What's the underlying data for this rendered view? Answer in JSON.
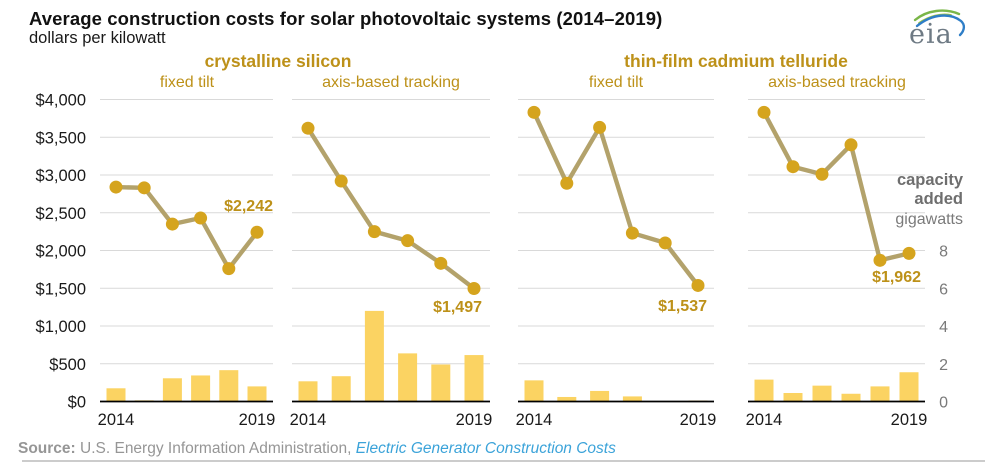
{
  "title": "Average construction costs for solar photovoltaic systems (2014–2019)",
  "subtitle": "dollars per kilowatt",
  "logo": {
    "text": "eia"
  },
  "group_headers": [
    {
      "label": "crystalline silicon"
    },
    {
      "label": "thin-film cadmium telluride"
    }
  ],
  "axes": {
    "left_ticks": [
      "$4,000",
      "$3,500",
      "$3,000",
      "$2,500",
      "$2,000",
      "$1,500",
      "$1,000",
      "$500",
      "$0"
    ],
    "right_ticks": [
      "8",
      "6",
      "4",
      "2",
      "0"
    ],
    "right_axis_label_lines": [
      "capacity",
      "added"
    ],
    "right_axis_unit": "gigawatts"
  },
  "source": {
    "prefix": "Source:",
    "text": " U.S. Energy Information Administration, ",
    "link": "Electric Generator Construction Costs"
  },
  "colors": {
    "bar": "#fbd362",
    "line": "#b3a26b",
    "marker": "#d5a41e",
    "gold_text": "#bd9119",
    "grid": "#d9d9d9",
    "axis": "#000000",
    "tick_text": "#1a1a1a",
    "gray_text": "#7a7a7a",
    "link": "#3ba3d9"
  },
  "chart_data": [
    {
      "type": "line+bar",
      "group": "crystalline silicon",
      "title": "fixed tilt",
      "x": [
        2014,
        2015,
        2016,
        2017,
        2018,
        2019
      ],
      "x_tick_labels": [
        "2014",
        "2019"
      ],
      "series": [
        {
          "name": "average construction cost (dollars per kilowatt)",
          "type": "line",
          "values": [
            2840,
            2830,
            2350,
            2430,
            1760,
            2242
          ]
        },
        {
          "name": "capacity added (gigawatts)",
          "type": "bar",
          "values": [
            0.7,
            0.06,
            1.23,
            1.38,
            1.66,
            0.8
          ]
        }
      ],
      "annotation": {
        "text": "$2,242",
        "year": 2019,
        "value": 2242
      },
      "ylim_left_dollars": [
        0,
        4000
      ],
      "ylim_right_gw": [
        0,
        8
      ],
      "axis_note": "right axis 0–8 GW spans $0–$2,000 of left axis"
    },
    {
      "type": "line+bar",
      "group": "crystalline silicon",
      "title": "axis-based tracking",
      "x": [
        2014,
        2015,
        2016,
        2017,
        2018,
        2019
      ],
      "x_tick_labels": [
        "2014",
        "2019"
      ],
      "series": [
        {
          "name": "average construction cost (dollars per kilowatt)",
          "type": "line",
          "values": [
            3620,
            2920,
            2250,
            2130,
            1830,
            1497
          ]
        },
        {
          "name": "capacity added (gigawatts)",
          "type": "bar",
          "values": [
            1.07,
            1.34,
            4.8,
            2.55,
            1.96,
            2.46
          ]
        }
      ],
      "annotation": {
        "text": "$1,497",
        "year": 2019,
        "value": 1497
      },
      "ylim_left_dollars": [
        0,
        4000
      ],
      "ylim_right_gw": [
        0,
        8
      ],
      "axis_note": "right axis 0–8 GW spans $0–$2,000 of left axis"
    },
    {
      "type": "line+bar",
      "group": "thin-film cadmium telluride",
      "title": "fixed tilt",
      "x": [
        2014,
        2015,
        2016,
        2017,
        2018,
        2019
      ],
      "x_tick_labels": [
        "2014",
        "2019"
      ],
      "series": [
        {
          "name": "average construction cost (dollars per kilowatt)",
          "type": "line",
          "values": [
            3830,
            2890,
            3630,
            2230,
            2100,
            1537
          ]
        },
        {
          "name": "capacity added (gigawatts)",
          "type": "bar",
          "values": [
            1.12,
            0.24,
            0.56,
            0.27,
            0.02,
            0.05
          ]
        }
      ],
      "annotation": {
        "text": "$1,537",
        "year": 2019,
        "value": 1537
      },
      "ylim_left_dollars": [
        0,
        4000
      ],
      "ylim_right_gw": [
        0,
        8
      ],
      "axis_note": "right axis 0–8 GW spans $0–$2,000 of left axis"
    },
    {
      "type": "line+bar",
      "group": "thin-film cadmium telluride",
      "title": "axis-based tracking",
      "x": [
        2014,
        2015,
        2016,
        2017,
        2018,
        2019
      ],
      "x_tick_labels": [
        "2014",
        "2019"
      ],
      "series": [
        {
          "name": "average construction cost (dollars per kilowatt)",
          "type": "line",
          "values": [
            3830,
            3110,
            3010,
            3400,
            1870,
            1962
          ]
        },
        {
          "name": "capacity added (gigawatts)",
          "type": "bar",
          "values": [
            1.16,
            0.45,
            0.84,
            0.41,
            0.8,
            1.55
          ]
        }
      ],
      "annotation": {
        "text": "$1,962",
        "year": 2019,
        "value": 1962
      },
      "ylim_left_dollars": [
        0,
        4000
      ],
      "ylim_right_gw": [
        0,
        8
      ],
      "axis_note": "right axis 0–8 GW spans $0–$2,000 of left axis"
    }
  ]
}
